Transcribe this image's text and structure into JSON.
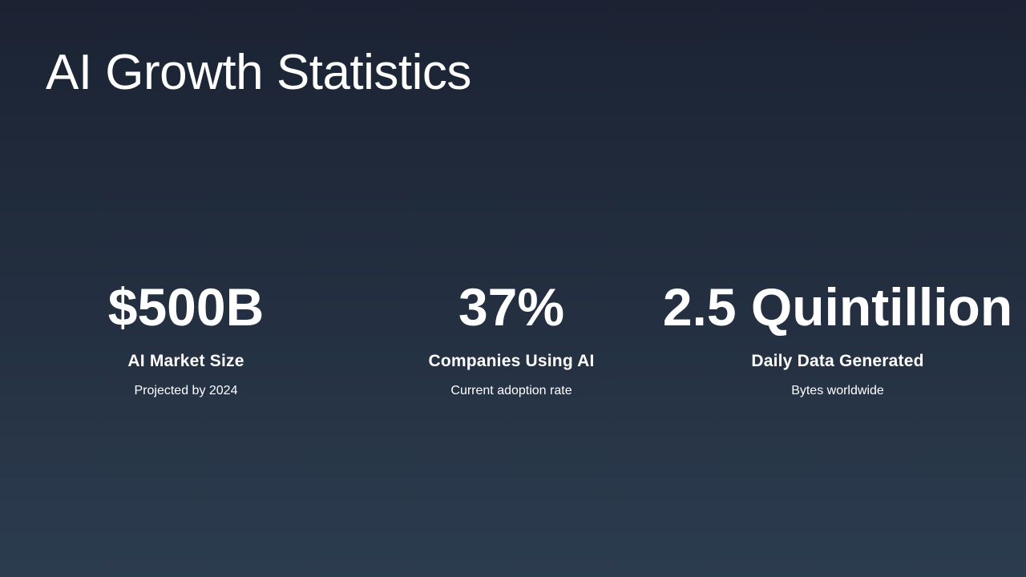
{
  "slide": {
    "title": "AI Growth Statistics"
  },
  "stats": [
    {
      "value": "$500B",
      "label": "AI Market Size",
      "sub": "Projected by 2024"
    },
    {
      "value": "37%",
      "label": "Companies Using AI",
      "sub": "Current adoption rate"
    },
    {
      "value": "2.5 Quintillion",
      "label": "Daily Data Generated",
      "sub": "Bytes worldwide"
    }
  ],
  "colors": {
    "background_top": "#1b2333",
    "background_bottom": "#2c3c4f",
    "text": "#ffffff"
  }
}
